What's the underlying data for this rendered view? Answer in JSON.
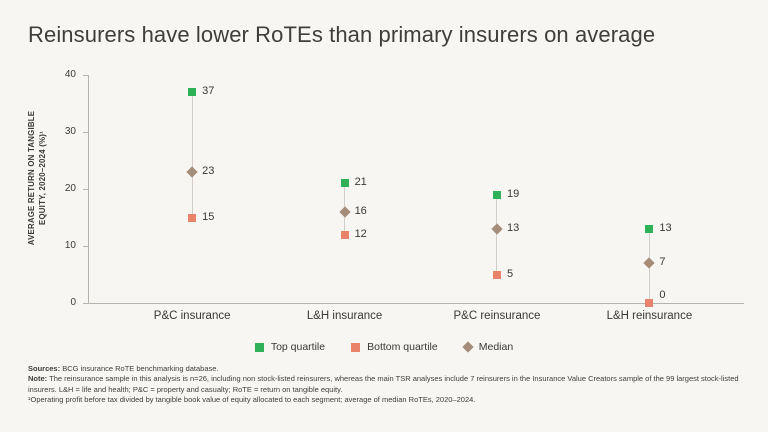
{
  "chart_data": {
    "type": "scatter",
    "title": "Reinsurers have lower RoTEs than primary insurers on average",
    "categories": [
      "P&C insurance",
      "L&H insurance",
      "P&C reinsurance",
      "L&H reinsurance"
    ],
    "series": [
      {
        "name": "Top quartile",
        "marker": "square",
        "color": "#2fb257",
        "values": [
          37,
          21,
          19,
          13
        ]
      },
      {
        "name": "Bottom quartile",
        "marker": "square",
        "color": "#e9836a",
        "values": [
          15,
          12,
          5,
          0
        ]
      },
      {
        "name": "Median",
        "marker": "diamond",
        "color": "#a58d79",
        "values": [
          23,
          16,
          13,
          7
        ]
      }
    ],
    "ylabel_lines": [
      "AVERAGE RETURN ON TANGIBLE",
      "EQUITY, 2020–2024 (%)¹"
    ],
    "ylim": [
      0,
      40
    ],
    "yticks": [
      0,
      10,
      20,
      30,
      40
    ],
    "grid": false,
    "legend_position": "bottom"
  },
  "footnotes": [
    {
      "label": "Sources:",
      "text": " BCG insurance RoTE benchmarking database."
    },
    {
      "label": "Note:",
      "text": " The reinsurance sample in this analysis is n=26, including non stock-listed reinsurers, whereas the main TSR analyses include 7 reinsurers in the Insurance Value Creators sample of the 99 largest stock-listed insurers. L&H = life and health; P&C = property and casualty; RoTE = return on tangible equity."
    },
    {
      "label": "",
      "text": "¹Operating profit before tax divided by tangible book value of equity allocated to each segment; average of median RoTEs, 2020–2024."
    }
  ],
  "colors": {
    "background": "#f7f6f3",
    "axis": "#b7b4af",
    "connector": "#d2cfca",
    "text": "#3c3a37",
    "top_quartile": "#2fb257",
    "bottom_quartile": "#e9836a",
    "median": "#a58d79"
  }
}
